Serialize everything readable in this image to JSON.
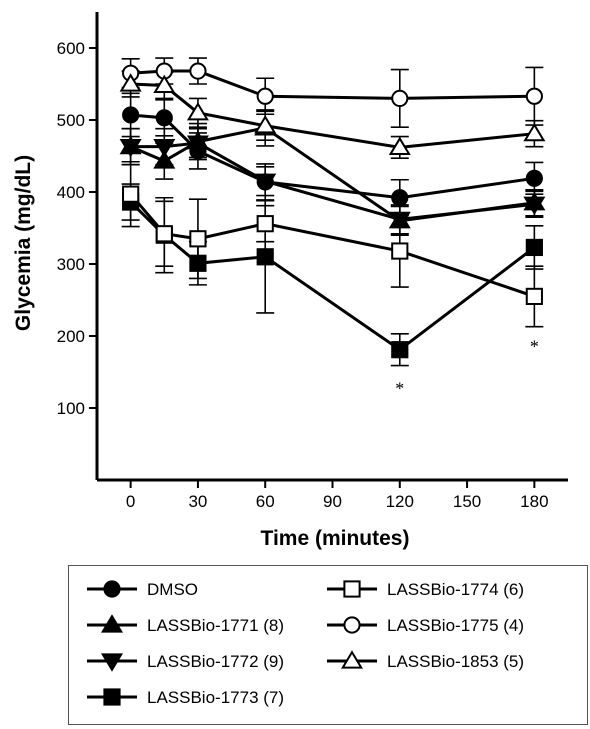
{
  "chart_data": {
    "type": "line",
    "xlabel": "Time (minutes)",
    "ylabel": "Glycemia (mg/dL)",
    "xlim": [
      -15,
      195
    ],
    "ylim": [
      0,
      650
    ],
    "xticks": [
      0,
      30,
      60,
      90,
      120,
      150,
      180
    ],
    "yticks": [
      100,
      200,
      300,
      400,
      500,
      600
    ],
    "legend_position": "bottom",
    "series": [
      {
        "name": "DMSO",
        "marker": "filled-circle",
        "x": [
          0,
          15,
          30,
          60,
          120,
          180
        ],
        "y": [
          507,
          503,
          457,
          414,
          392,
          419
        ],
        "err": [
          30,
          25,
          25,
          25,
          25,
          22
        ]
      },
      {
        "name": "LASSBio-1771 (8)",
        "marker": "filled-triangle-up",
        "x": [
          0,
          15,
          30,
          60,
          120,
          180
        ],
        "y": [
          463,
          443,
          470,
          489,
          360,
          385
        ],
        "err": [
          25,
          25,
          25,
          25,
          20,
          18
        ]
      },
      {
        "name": "LASSBio-1772 (9)",
        "marker": "filled-triangle-down",
        "x": [
          0,
          15,
          30,
          60,
          120,
          180
        ],
        "y": [
          463,
          463,
          468,
          415,
          362,
          383
        ],
        "err": [
          25,
          25,
          20,
          20,
          20,
          18
        ]
      },
      {
        "name": "LASSBio-1773 (7)",
        "marker": "filled-square",
        "x": [
          0,
          15,
          30,
          60,
          120,
          180
        ],
        "y": [
          386,
          340,
          301,
          310,
          181,
          323
        ],
        "err": [
          25,
          52,
          30,
          78,
          22,
          30
        ]
      },
      {
        "name": "LASSBio-1774 (6)",
        "marker": "open-square",
        "x": [
          0,
          15,
          30,
          60,
          120,
          180
        ],
        "y": [
          397,
          342,
          335,
          356,
          318,
          255
        ],
        "err": [
          45,
          45,
          55,
          25,
          50,
          42
        ]
      },
      {
        "name": "LASSBio-1775 (4)",
        "marker": "open-circle",
        "x": [
          0,
          15,
          30,
          60,
          120,
          180
        ],
        "y": [
          565,
          568,
          568,
          533,
          530,
          533
        ],
        "err": [
          20,
          18,
          18,
          25,
          40,
          40
        ]
      },
      {
        "name": "LASSBio-1853 (5)",
        "marker": "open-triangle-up",
        "x": [
          0,
          15,
          30,
          60,
          120,
          180
        ],
        "y": [
          550,
          548,
          510,
          492,
          462,
          481
        ],
        "err": [
          18,
          18,
          20,
          20,
          15,
          18
        ]
      }
    ],
    "annotations": [
      {
        "text": "*",
        "x": 120,
        "y": 130
      },
      {
        "text": "*",
        "x": 180,
        "y": 188
      }
    ]
  }
}
